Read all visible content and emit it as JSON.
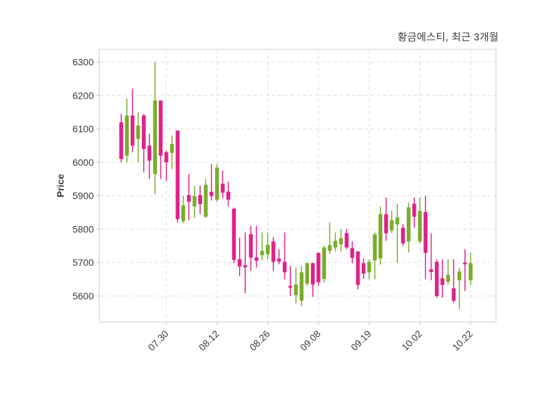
{
  "title": "황금에스티, 최근 3개월",
  "y_axis_title": "Price",
  "chart_data": {
    "type": "candlestick",
    "x_tick_labels": [
      "07.30",
      "08.12",
      "08.26",
      "09.08",
      "09.19",
      "10.02",
      "10.22"
    ],
    "x_tick_indices": [
      8,
      17,
      26,
      35,
      44,
      53,
      62
    ],
    "y_ticks": [
      5600,
      5700,
      5800,
      5900,
      6000,
      6100,
      6200,
      6300
    ],
    "ylim": [
      5522,
      6338
    ],
    "grid": "dashed",
    "up_color": "#7AAC2B",
    "down_color": "#E0218A",
    "grid_color": "#dcdcdc",
    "border_color": "#cccccc",
    "tick_text_color": "#3b3b3b",
    "candles_ohlc": [
      [
        6120,
        6145,
        6000,
        6010
      ],
      [
        6020,
        6190,
        6000,
        6140
      ],
      [
        6140,
        6220,
        6030,
        6050
      ],
      [
        6070,
        6150,
        6000,
        6110
      ],
      [
        6140,
        6145,
        5970,
        6040
      ],
      [
        6050,
        6085,
        5950,
        6005
      ],
      [
        5965,
        6300,
        5905,
        6185
      ],
      [
        6185,
        6185,
        5950,
        6020
      ],
      [
        6030,
        6035,
        5945,
        6000
      ],
      [
        6028,
        6080,
        5980,
        6055
      ],
      [
        6095,
        6095,
        5820,
        5830
      ],
      [
        5824,
        5900,
        5818,
        5871
      ],
      [
        5902,
        5965,
        5827,
        5882
      ],
      [
        5868,
        5928,
        5834,
        5899
      ],
      [
        5902,
        5930,
        5845,
        5875
      ],
      [
        5837,
        5950,
        5834,
        5933
      ],
      [
        5912,
        5995,
        5885,
        5899
      ],
      [
        5888,
        5995,
        5881,
        5984
      ],
      [
        5936,
        5975,
        5892,
        5909
      ],
      [
        5912,
        5943,
        5868,
        5888
      ],
      [
        5861,
        5865,
        5698,
        5708
      ],
      [
        5710,
        5775,
        5660,
        5688
      ],
      [
        5692,
        5790,
        5608,
        5686
      ],
      [
        5785,
        5810,
        5675,
        5715
      ],
      [
        5715,
        5810,
        5685,
        5705
      ],
      [
        5722,
        5790,
        5706,
        5735
      ],
      [
        5725,
        5790,
        5710,
        5753
      ],
      [
        5763,
        5776,
        5675,
        5702
      ],
      [
        5712,
        5740,
        5695,
        5703
      ],
      [
        5702,
        5790,
        5650,
        5671
      ],
      [
        5630,
        5690,
        5600,
        5625
      ],
      [
        5603,
        5685,
        5578,
        5634
      ],
      [
        5586,
        5690,
        5570,
        5671
      ],
      [
        5637,
        5700,
        5630,
        5698
      ],
      [
        5698,
        5700,
        5597,
        5634
      ],
      [
        5729,
        5730,
        5630,
        5641
      ],
      [
        5651,
        5750,
        5640,
        5745
      ],
      [
        5735,
        5820,
        5725,
        5752
      ],
      [
        5745,
        5790,
        5733,
        5765
      ],
      [
        5755,
        5800,
        5733,
        5773
      ],
      [
        5788,
        5800,
        5740,
        5745
      ],
      [
        5743,
        5763,
        5698,
        5714
      ],
      [
        5733,
        5735,
        5620,
        5633
      ],
      [
        5698,
        5712,
        5651,
        5667
      ],
      [
        5671,
        5710,
        5650,
        5702
      ],
      [
        5706,
        5790,
        5650,
        5784
      ],
      [
        5712,
        5868,
        5694,
        5845
      ],
      [
        5845,
        5895,
        5765,
        5788
      ],
      [
        5796,
        5855,
        5788,
        5827
      ],
      [
        5814,
        5875,
        5700,
        5835
      ],
      [
        5804,
        5815,
        5750,
        5757
      ],
      [
        5763,
        5880,
        5730,
        5865
      ],
      [
        5876,
        5895,
        5804,
        5837
      ],
      [
        5763,
        5895,
        5757,
        5855
      ],
      [
        5851,
        5900,
        5651,
        5729
      ],
      [
        5680,
        5788,
        5647,
        5672
      ],
      [
        5702,
        5710,
        5595,
        5600
      ],
      [
        5653,
        5710,
        5595,
        5633
      ],
      [
        5643,
        5710,
        5633,
        5663
      ],
      [
        5623,
        5710,
        5580,
        5586
      ],
      [
        5647,
        5684,
        5560,
        5673
      ],
      [
        5700,
        5740,
        5615,
        5695
      ],
      [
        5647,
        5730,
        5633,
        5698
      ]
    ]
  }
}
